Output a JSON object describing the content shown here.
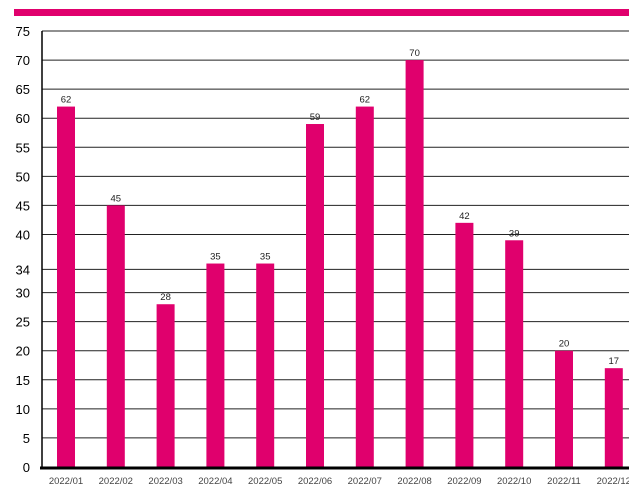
{
  "chart_data": {
    "type": "bar",
    "categories": [
      "2022/01",
      "2022/02",
      "2022/03",
      "2022/04",
      "2022/05",
      "2022/06",
      "2022/07",
      "2022/08",
      "2022/09",
      "2022/10",
      "2022/11",
      "2022/12"
    ],
    "values": [
      62,
      45,
      28,
      35,
      35,
      59,
      62,
      70,
      42,
      39,
      20,
      17
    ],
    "yticks": [
      0,
      5,
      10,
      15,
      20,
      25,
      30,
      34,
      40,
      45,
      50,
      55,
      60,
      65,
      70,
      75
    ],
    "ylim": [
      0,
      75
    ],
    "grid": true,
    "data_labels": true,
    "bar_color": "#e0006d",
    "top_band_color": "#e0006d",
    "axis_color": "#000000"
  }
}
